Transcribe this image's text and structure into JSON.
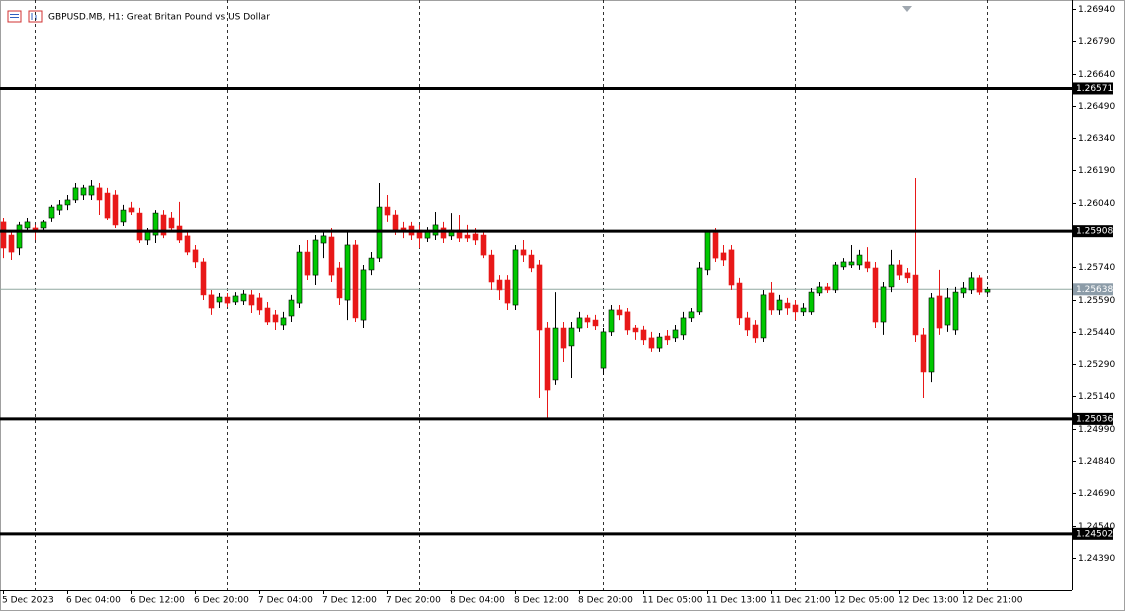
{
  "chart_data": {
    "type": "candlestick",
    "title": "GBPUSD.MB, H1:  Great Britan Pound vs US Dollar",
    "categories": [
      "5 Dec 2023",
      null,
      null,
      null,
      null,
      null,
      null,
      null,
      "6 Dec 04:00",
      null,
      null,
      null,
      null,
      null,
      null,
      null,
      "6 Dec 12:00",
      null,
      null,
      null,
      null,
      null,
      null,
      null,
      "6 Dec 20:00",
      null,
      null,
      null,
      null,
      null,
      null,
      null,
      "7 Dec 04:00",
      null,
      null,
      null,
      null,
      null,
      null,
      null,
      "7 Dec 12:00",
      null,
      null,
      null,
      null,
      null,
      null,
      null,
      "7 Dec 20:00",
      null,
      null,
      null,
      null,
      null,
      null,
      null,
      "8 Dec 04:00",
      null,
      null,
      null,
      null,
      null,
      null,
      null,
      "8 Dec 12:00",
      null,
      null,
      null,
      null,
      null,
      null,
      null,
      "8 Dec 20:00",
      null,
      null,
      null,
      null,
      null,
      null,
      null,
      "11 Dec 05:00",
      null,
      null,
      null,
      null,
      null,
      null,
      null,
      "11 Dec 13:00",
      null,
      null,
      null,
      null,
      null,
      null,
      null,
      "11 Dec 21:00",
      null,
      null,
      null,
      null,
      null,
      null,
      null,
      "12 Dec 05:00",
      null,
      null,
      null,
      null,
      null,
      null,
      null,
      "12 Dec 13:00",
      null,
      null,
      null,
      null,
      null,
      null,
      null,
      "12 Dec 21:00",
      null,
      null,
      null
    ],
    "open": [
      1.25951,
      1.2589,
      1.2583,
      1.25923,
      1.25923,
      1.25923,
      1.25969,
      1.26006,
      1.2603,
      1.26053,
      1.26076,
      1.26076,
      1.26109,
      1.26085,
      1.26076,
      1.25951,
      1.26016,
      1.25992,
      1.25867,
      1.2589,
      1.25983,
      1.25969,
      1.25932,
      1.25886,
      1.25821,
      1.25765,
      1.25612,
      1.25579,
      1.25602,
      1.25579,
      1.25584,
      1.25612,
      1.25598,
      1.25551,
      1.25519,
      1.25472,
      1.25514,
      1.25574,
      1.25811,
      1.25704,
      1.25853,
      1.25881,
      1.25737,
      1.25588,
      1.25844,
      1.25495,
      1.25728,
      1.25783,
      1.2602,
      1.25983,
      1.25923,
      1.25932,
      1.25913,
      1.25876,
      1.2589,
      1.25923,
      1.25886,
      1.25913,
      1.2589,
      1.25895,
      1.2589,
      1.25797,
      1.25681,
      1.25681,
      1.25565,
      1.25821,
      1.25797,
      1.25751,
      1.25458,
      1.25217,
      1.25458,
      1.25375,
      1.25458,
      1.25505,
      1.25495,
      1.25272,
      1.2544,
      1.25542,
      1.25533,
      1.25458,
      1.25449,
      1.25412,
      1.25365,
      1.25421,
      1.25412,
      1.25426,
      1.25505,
      1.25533,
      1.25728,
      1.259,
      1.25807,
      1.25821,
      1.25667,
      1.25505,
      1.25472,
      1.25412,
      1.25621,
      1.25542,
      1.25574,
      1.25565,
      1.25533,
      1.25533,
      1.25621,
      1.25649,
      1.25635,
      1.25742,
      1.25751,
      1.25751,
      1.25765,
      1.25737,
      1.25486,
      1.25649,
      1.25751,
      1.25714,
      1.25704,
      1.25426,
      1.25254,
      1.25607,
      1.25472,
      1.25449,
      1.25621,
      1.25635,
      1.25691,
      1.25625
    ],
    "high": [
      1.25969,
      1.25904,
      1.25951,
      1.25969,
      1.25937,
      1.2596,
      1.2603,
      1.26053,
      1.26076,
      1.26132,
      1.26123,
      1.26146,
      1.26132,
      1.26109,
      1.26099,
      1.2603,
      1.26044,
      1.26016,
      1.25923,
      1.26006,
      1.26006,
      1.25997,
      1.26044,
      1.25913,
      1.25844,
      1.25783,
      1.25635,
      1.25621,
      1.25621,
      1.25625,
      1.25635,
      1.25635,
      1.25621,
      1.25579,
      1.25542,
      1.25533,
      1.25612,
      1.25844,
      1.25867,
      1.2589,
      1.25913,
      1.25923,
      1.25765,
      1.25913,
      1.25867,
      1.25751,
      1.25811,
      1.26132,
      1.26076,
      1.26006,
      1.25951,
      1.25951,
      1.25937,
      1.25927,
      1.25997,
      1.25951,
      1.25992,
      1.25983,
      1.25937,
      1.25923,
      1.25913,
      1.25821,
      1.25704,
      1.25704,
      1.25844,
      1.25867,
      1.25821,
      1.25774,
      1.25486,
      1.25625,
      1.25486,
      1.25486,
      1.25533,
      1.25519,
      1.25519,
      1.25458,
      1.25565,
      1.25565,
      1.25551,
      1.25472,
      1.25468,
      1.2544,
      1.25435,
      1.25449,
      1.25472,
      1.25533,
      1.25551,
      1.25765,
      1.25913,
      1.25923,
      1.25844,
      1.25844,
      1.25691,
      1.25533,
      1.25495,
      1.25635,
      1.25672,
      1.25612,
      1.25598,
      1.25588,
      1.25574,
      1.25644,
      1.25672,
      1.25667,
      1.25765,
      1.25783,
      1.25844,
      1.25821,
      1.25834,
      1.25765,
      1.25672,
      1.25821,
      1.25774,
      1.25737,
      1.26155,
      1.25458,
      1.25621,
      1.25728,
      1.25644,
      1.25649,
      1.25672,
      1.25718,
      1.25704,
      1.25649
    ],
    "low": [
      1.25783,
      1.25774,
      1.25797,
      1.25904,
      1.25867,
      1.25913,
      1.25951,
      1.25983,
      1.26006,
      1.26039,
      1.26053,
      1.26053,
      1.25983,
      1.2596,
      1.25923,
      1.25932,
      1.25983,
      1.25853,
      1.25844,
      1.25853,
      1.25876,
      1.25904,
      1.25853,
      1.25797,
      1.25737,
      1.25588,
      1.25519,
      1.25551,
      1.25556,
      1.25565,
      1.25565,
      1.25528,
      1.25519,
      1.25472,
      1.25449,
      1.25449,
      1.25486,
      1.25551,
      1.25681,
      1.25658,
      1.25783,
      1.25672,
      1.25565,
      1.25495,
      1.25486,
      1.25458,
      1.25704,
      1.25765,
      1.25951,
      1.2589,
      1.25876,
      1.25867,
      1.2583,
      1.25858,
      1.25867,
      1.25853,
      1.25867,
      1.25858,
      1.25858,
      1.25844,
      1.25783,
      1.25635,
      1.25588,
      1.25542,
      1.25542,
      1.25765,
      1.25718,
      1.25133,
      1.25031,
      1.25194,
      1.253,
      1.25226,
      1.2544,
      1.25458,
      1.25449,
      1.2524,
      1.25421,
      1.25495,
      1.25426,
      1.25403,
      1.25379,
      1.25347,
      1.25347,
      1.25379,
      1.25393,
      1.25403,
      1.25486,
      1.25519,
      1.25704,
      1.25765,
      1.25746,
      1.25635,
      1.25472,
      1.25421,
      1.25389,
      1.25393,
      1.25519,
      1.25519,
      1.25519,
      1.25495,
      1.25514,
      1.25519,
      1.25607,
      1.25621,
      1.25621,
      1.25728,
      1.25737,
      1.25728,
      1.25718,
      1.25458,
      1.25426,
      1.25625,
      1.25681,
      1.25667,
      1.25393,
      1.25133,
      1.25207,
      1.25426,
      1.2544,
      1.25426,
      1.25598,
      1.25616,
      1.25612,
      1.25616
    ],
    "close": [
      1.2583,
      1.25811,
      1.25937,
      1.25951,
      1.25904,
      1.25951,
      1.2602,
      1.2603,
      1.26053,
      1.26109,
      1.26109,
      1.26118,
      1.26053,
      1.25969,
      1.25937,
      1.26006,
      1.25997,
      1.25867,
      1.25904,
      1.25992,
      1.2589,
      1.25923,
      1.25867,
      1.25811,
      1.25765,
      1.25612,
      1.25551,
      1.25602,
      1.25574,
      1.25607,
      1.25616,
      1.25565,
      1.25542,
      1.25486,
      1.25486,
      1.25505,
      1.25588,
      1.25811,
      1.25704,
      1.25867,
      1.25886,
      1.25704,
      1.25598,
      1.25844,
      1.25505,
      1.25728,
      1.25783,
      1.2602,
      1.25983,
      1.25913,
      1.25904,
      1.2589,
      1.25876,
      1.25904,
      1.25937,
      1.25876,
      1.25913,
      1.25876,
      1.25876,
      1.25867,
      1.25797,
      1.25672,
      1.25635,
      1.25574,
      1.25821,
      1.25797,
      1.25737,
      1.25449,
      1.2517,
      1.25458,
      1.25365,
      1.25458,
      1.25505,
      1.25486,
      1.25468,
      1.2544,
      1.25542,
      1.25519,
      1.25449,
      1.2544,
      1.25403,
      1.25365,
      1.25416,
      1.25403,
      1.25449,
      1.25505,
      1.25533,
      1.25737,
      1.25904,
      1.25783,
      1.25774,
      1.25658,
      1.25505,
      1.25449,
      1.25412,
      1.25612,
      1.25542,
      1.25588,
      1.25551,
      1.25533,
      1.25551,
      1.25625,
      1.25649,
      1.25635,
      1.25751,
      1.25765,
      1.25765,
      1.25797,
      1.25737,
      1.25486,
      1.25649,
      1.25751,
      1.25704,
      1.25691,
      1.25426,
      1.25254,
      1.25598,
      1.25458,
      1.25598,
      1.25625,
      1.25644,
      1.25691,
      1.25625,
      1.25638
    ],
    "up_color": "#00c800",
    "down_color": "#e81818",
    "ylim": [
      1.24241,
      1.26982
    ],
    "yticks": [
      {
        "value": 1.2694,
        "label": "1.26940"
      },
      {
        "value": 1.2679,
        "label": "1.26790"
      },
      {
        "value": 1.2664,
        "label": "1.26640"
      },
      {
        "value": 1.2649,
        "label": "1.26490"
      },
      {
        "value": 1.2634,
        "label": "1.26340"
      },
      {
        "value": 1.2619,
        "label": "1.26190"
      },
      {
        "value": 1.2604,
        "label": "1.26040"
      },
      {
        "value": 1.2574,
        "label": "1.25740"
      },
      {
        "value": 1.2559,
        "label": "1.25590"
      },
      {
        "value": 1.2544,
        "label": "1.25440"
      },
      {
        "value": 1.2529,
        "label": "1.25290"
      },
      {
        "value": 1.2514,
        "label": "1.25140"
      },
      {
        "value": 1.2499,
        "label": "1.24990"
      },
      {
        "value": 1.2484,
        "label": "1.24840"
      },
      {
        "value": 1.2469,
        "label": "1.24690"
      },
      {
        "value": 1.2454,
        "label": "1.24540"
      },
      {
        "value": 1.2439,
        "label": "1.24390"
      }
    ],
    "levels": [
      1.26571,
      1.25908,
      1.25036,
      1.24502
    ],
    "current_price": 1.25638
  }
}
